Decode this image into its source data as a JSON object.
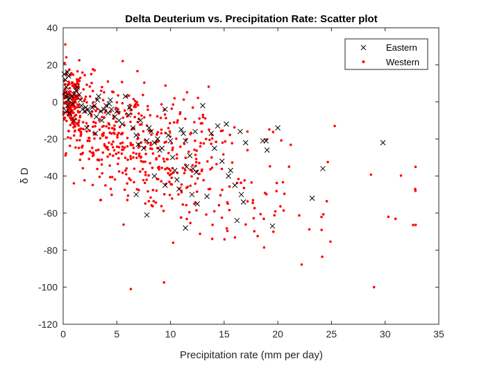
{
  "chart_data": {
    "type": "scatter",
    "title": "Delta Deuterium vs. Precipitation Rate: Scatter plot",
    "xlabel": "Precipitation rate (mm per day)",
    "ylabel": "δ D",
    "xlim": [
      0,
      35
    ],
    "ylim": [
      -120,
      40
    ],
    "xticks": [
      0,
      5,
      10,
      15,
      20,
      25,
      30,
      35
    ],
    "yticks": [
      -120,
      -100,
      -80,
      -60,
      -40,
      -20,
      0,
      20,
      40
    ],
    "grid": false,
    "legend_position": "top-right",
    "series": [
      {
        "name": "Eastern",
        "marker": "x",
        "color": "#000000",
        "points": [
          [
            0.1,
            15
          ],
          [
            0.2,
            12
          ],
          [
            0.3,
            8
          ],
          [
            0.4,
            16
          ],
          [
            0.5,
            14
          ],
          [
            0.2,
            5
          ],
          [
            0.3,
            3
          ],
          [
            0.5,
            1
          ],
          [
            0.6,
            2
          ],
          [
            0.8,
            3
          ],
          [
            0.4,
            -2
          ],
          [
            0.3,
            -5
          ],
          [
            0.6,
            -6
          ],
          [
            0.9,
            -1
          ],
          [
            1.0,
            4
          ],
          [
            1.2,
            6
          ],
          [
            1.3,
            8
          ],
          [
            1.5,
            4
          ],
          [
            1.6,
            1
          ],
          [
            1.7,
            -2
          ],
          [
            1.8,
            -4
          ],
          [
            2.0,
            -5
          ],
          [
            2.1,
            -3
          ],
          [
            2.3,
            -4
          ],
          [
            2.5,
            -6
          ],
          [
            2.7,
            -3
          ],
          [
            2.9,
            -2
          ],
          [
            3.1,
            -8
          ],
          [
            3.2,
            1
          ],
          [
            3.3,
            3
          ],
          [
            3.5,
            -5
          ],
          [
            3.6,
            -10
          ],
          [
            3.8,
            -4
          ],
          [
            4.0,
            -2
          ],
          [
            4.2,
            -6
          ],
          [
            4.3,
            -1
          ],
          [
            4.4,
            1
          ],
          [
            4.5,
            -4
          ],
          [
            4.8,
            -8
          ],
          [
            5.0,
            -5
          ],
          [
            5.2,
            -10
          ],
          [
            5.5,
            -12
          ],
          [
            5.8,
            3
          ],
          [
            6.1,
            -7
          ],
          [
            6.2,
            -3
          ],
          [
            6.5,
            -14
          ],
          [
            6.8,
            -18
          ],
          [
            7.0,
            -23
          ],
          [
            7.2,
            -10
          ],
          [
            7.5,
            -25
          ],
          [
            7.8,
            -21
          ],
          [
            8.0,
            -14
          ],
          [
            8.2,
            -16
          ],
          [
            8.5,
            -22
          ],
          [
            8.8,
            -20
          ],
          [
            9.0,
            -26
          ],
          [
            9.2,
            -25
          ],
          [
            9.5,
            -4
          ],
          [
            9.8,
            -18
          ],
          [
            10.0,
            -21
          ],
          [
            10.2,
            -30
          ],
          [
            10.4,
            -37
          ],
          [
            10.6,
            -42
          ],
          [
            10.8,
            -47
          ],
          [
            11.0,
            -15
          ],
          [
            11.2,
            -17
          ],
          [
            11.4,
            -21
          ],
          [
            11.5,
            -35
          ],
          [
            11.8,
            -29
          ],
          [
            12.0,
            -50
          ],
          [
            12.1,
            -36
          ],
          [
            12.3,
            -16
          ],
          [
            12.5,
            -55
          ],
          [
            13.0,
            -2
          ],
          [
            13.4,
            -51
          ],
          [
            13.8,
            -17
          ],
          [
            14.1,
            -25
          ],
          [
            14.4,
            -13
          ],
          [
            14.8,
            -32
          ],
          [
            15.2,
            -12
          ],
          [
            15.4,
            -40
          ],
          [
            15.6,
            -37
          ],
          [
            16.0,
            -45
          ],
          [
            16.2,
            -64
          ],
          [
            16.5,
            -16
          ],
          [
            16.6,
            -50
          ],
          [
            16.8,
            -54
          ],
          [
            17.0,
            -22
          ],
          [
            18.6,
            -21
          ],
          [
            18.9,
            -21
          ],
          [
            19.0,
            -26
          ],
          [
            19.5,
            -67
          ],
          [
            20.0,
            -14
          ],
          [
            23.2,
            -52
          ],
          [
            24.2,
            -36
          ],
          [
            29.8,
            -22
          ],
          [
            7.8,
            -61
          ],
          [
            11.4,
            -68
          ],
          [
            12.4,
            -38
          ],
          [
            8.5,
            -40
          ],
          [
            9.5,
            -45
          ],
          [
            6.8,
            -50
          ],
          [
            1.0,
            -10
          ],
          [
            2.2,
            -14
          ],
          [
            3.0,
            -17
          ]
        ]
      },
      {
        "name": "Western",
        "marker": ".",
        "color": "#ff0000",
        "generated": true,
        "n": 700
      }
    ]
  },
  "legend": {
    "items": [
      {
        "label": "Eastern",
        "icon": "x-marker-icon"
      },
      {
        "label": "Western",
        "icon": "dot-marker-icon"
      }
    ]
  }
}
